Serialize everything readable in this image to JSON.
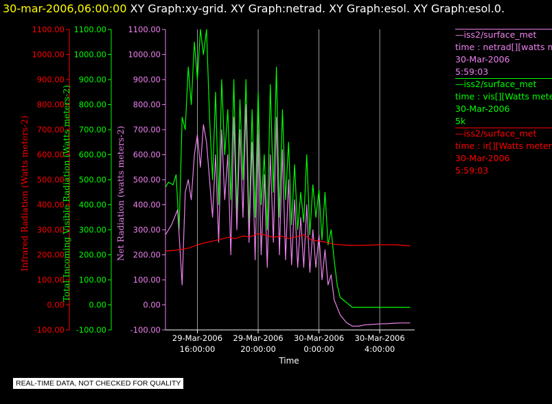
{
  "header": {
    "timestamp": "30-mar-2006,06:00:00",
    "graph_titles": [
      "XY Graph:xy-grid.",
      "XY Graph:netrad.",
      "XY Graph:esol.",
      "XY Graph:esol.0."
    ]
  },
  "legend": [
    {
      "source": "iss2/surface_met",
      "label": "time : netrad[][watts met",
      "date": "30-Mar-2006",
      "time": "5:59:03",
      "color": "#ee82ee"
    },
    {
      "source": "iss2/surface_met",
      "label": "time : vis[][Watts meter",
      "date": "30-Mar-2006",
      "time": "5k",
      "color": "#00ff00"
    },
    {
      "source": "iss2/surface_met",
      "label": "time : ir[][Watts meters",
      "date": "30-Mar-2006",
      "time": "5:59:03",
      "color": "#ff0000"
    }
  ],
  "footer": {
    "text": "REAL-TIME DATA, NOT CHECKED FOR QUALITY"
  },
  "chart_data": {
    "type": "line",
    "xlabel": "Time",
    "x_ticks": [
      {
        "date": "29-Mar-2006",
        "time": "16:00:00",
        "hours": 16
      },
      {
        "date": "29-Mar-2006",
        "time": "20:00:00",
        "hours": 20
      },
      {
        "date": "30-Mar-2006",
        "time": "0:00:00",
        "hours": 24
      },
      {
        "date": "30-Mar-2006",
        "time": "4:00:00",
        "hours": 28
      }
    ],
    "xlim": [
      13.9,
      30.3
    ],
    "x_unit": "hours since 29-Mar-2006 0:00",
    "grid": true,
    "axes": [
      {
        "id": "ir",
        "label": "Infrared Radiation (Watts meters-2)",
        "color": "#ff0000",
        "ylim": [
          -100,
          1100
        ],
        "ticks": [
          "1100.00",
          "1000.00",
          "900.00",
          "800.00",
          "700.00",
          "600.00",
          "500.00",
          "400.00",
          "300.00",
          "200.00",
          "100.00",
          "0.00",
          "-100.00"
        ]
      },
      {
        "id": "vis",
        "label": "Total Incoming Visible Radiation (Watts meters-2)",
        "color": "#00ff00",
        "ylim": [
          -100,
          1100
        ],
        "ticks": [
          "1100.00",
          "1000.00",
          "900.00",
          "800.00",
          "700.00",
          "600.00",
          "500.00",
          "400.00",
          "300.00",
          "200.00",
          "100.00",
          "0.00",
          "-100.00"
        ]
      },
      {
        "id": "net",
        "label": "Net Radiation (watts meters-2)",
        "color": "#ee82ee",
        "ylim": [
          -100,
          1100
        ],
        "ticks": [
          "1100.00",
          "1000.00",
          "900.00",
          "800.00",
          "700.00",
          "600.00",
          "500.00",
          "400.00",
          "300.00",
          "200.00",
          "100.00",
          "0.00",
          "-100.00"
        ]
      }
    ],
    "series": [
      {
        "name": "time : vis[][Watts meter",
        "color": "#00ff00",
        "x": [
          13.9,
          14.1,
          14.4,
          14.6,
          14.8,
          15.0,
          15.2,
          15.4,
          15.6,
          15.8,
          16.0,
          16.2,
          16.4,
          16.6,
          16.8,
          17.0,
          17.2,
          17.4,
          17.6,
          17.8,
          18.0,
          18.2,
          18.4,
          18.6,
          18.8,
          19.0,
          19.2,
          19.4,
          19.6,
          19.8,
          20.0,
          20.2,
          20.4,
          20.6,
          20.8,
          21.0,
          21.2,
          21.4,
          21.6,
          21.8,
          22.0,
          22.2,
          22.4,
          22.6,
          22.8,
          23.0,
          23.2,
          23.4,
          23.6,
          23.8,
          24.0,
          24.2,
          24.4,
          24.6,
          24.8,
          25.0,
          25.2,
          25.4,
          25.8,
          26.2,
          26.6,
          27.0,
          27.5,
          28.0,
          28.5,
          29.0,
          29.5,
          30.0
        ],
        "y": [
          470,
          490,
          480,
          520,
          300,
          750,
          700,
          950,
          800,
          1050,
          900,
          1100,
          1000,
          1100,
          750,
          500,
          850,
          400,
          900,
          600,
          780,
          420,
          900,
          350,
          820,
          500,
          900,
          300,
          780,
          350,
          850,
          400,
          600,
          300,
          880,
          450,
          950,
          350,
          780,
          420,
          650,
          320,
          560,
          300,
          450,
          330,
          600,
          280,
          480,
          350,
          460,
          260,
          450,
          240,
          300,
          180,
          80,
          30,
          10,
          -10,
          -10,
          -10,
          -10,
          -10,
          -10,
          -10,
          -10,
          -10
        ]
      },
      {
        "name": "time : netrad[][watts met",
        "color": "#ee82ee",
        "x": [
          13.9,
          14.3,
          14.7,
          15.0,
          15.2,
          15.4,
          15.6,
          15.8,
          16.0,
          16.2,
          16.4,
          16.6,
          16.8,
          17.0,
          17.2,
          17.4,
          17.6,
          17.8,
          18.0,
          18.2,
          18.4,
          18.6,
          18.8,
          19.0,
          19.2,
          19.4,
          19.6,
          19.8,
          20.0,
          20.2,
          20.4,
          20.6,
          20.8,
          21.0,
          21.2,
          21.4,
          21.6,
          21.8,
          22.0,
          22.2,
          22.4,
          22.6,
          22.8,
          23.0,
          23.2,
          23.4,
          23.6,
          23.8,
          24.0,
          24.2,
          24.4,
          24.6,
          24.8,
          25.0,
          25.4,
          25.8,
          26.2,
          26.6,
          27.0,
          27.5,
          28.0,
          28.5,
          29.0,
          29.5,
          30.0
        ],
        "y": [
          280,
          320,
          380,
          80,
          450,
          500,
          420,
          600,
          680,
          550,
          720,
          650,
          500,
          350,
          600,
          250,
          700,
          420,
          600,
          200,
          750,
          300,
          700,
          350,
          800,
          250,
          650,
          180,
          700,
          200,
          520,
          150,
          600,
          250,
          750,
          200,
          620,
          180,
          500,
          160,
          420,
          150,
          350,
          150,
          400,
          130,
          300,
          150,
          280,
          100,
          220,
          80,
          120,
          20,
          -40,
          -70,
          -85,
          -85,
          -80,
          -78,
          -76,
          -75,
          -73,
          -72,
          -72
        ]
      },
      {
        "name": "time : ir[][Watts meters",
        "color": "#ff0000",
        "x": [
          13.9,
          14.5,
          15.0,
          15.5,
          16.0,
          16.5,
          17.0,
          17.5,
          18.0,
          18.5,
          19.0,
          19.5,
          20.0,
          20.5,
          21.0,
          21.5,
          22.0,
          22.5,
          23.0,
          23.5,
          24.0,
          24.5,
          25.0,
          25.5,
          26.0,
          27.0,
          28.0,
          29.0,
          30.0
        ],
        "y": [
          215,
          218,
          222,
          228,
          240,
          248,
          255,
          262,
          270,
          265,
          275,
          272,
          285,
          278,
          270,
          275,
          265,
          272,
          280,
          260,
          255,
          250,
          242,
          240,
          238,
          238,
          240,
          240,
          236
        ]
      }
    ]
  }
}
